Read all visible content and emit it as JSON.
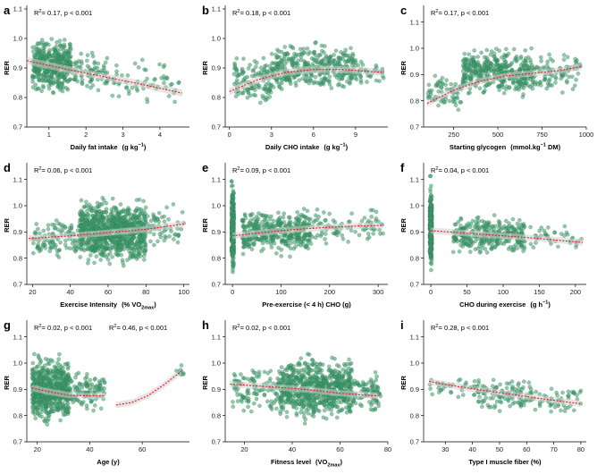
{
  "figure": {
    "background": "#ffffff",
    "point_color": "#3a9a6a",
    "point_edge": "#2e6e4e",
    "fit_color": "#e8191a",
    "band_color": "#cfcfcf"
  },
  "chart_data": [
    {
      "panel": "a",
      "type": "scatter",
      "xlabel": "Daily fat intake",
      "xunit": "(g kg",
      "xunit_sup": "−1",
      "xunit_end": ")",
      "ylabel": "RER",
      "annotation": "R",
      "annotation_sup": "2",
      "annotation_rest": "= 0.17, p < 0.001",
      "xlim": [
        0.4,
        4.8
      ],
      "ylim": [
        0.7,
        1.1
      ],
      "xticks": [
        "1",
        "2",
        "3",
        "4"
      ],
      "xtick_values": [
        1,
        2,
        3,
        4
      ],
      "yticks": [
        "0.7",
        "0.8",
        "0.9",
        "1.0",
        "1.1"
      ],
      "ytick_values": [
        0.7,
        0.8,
        0.9,
        1.0,
        1.1
      ],
      "fit": {
        "x": [
          0.4,
          1.5,
          2.5,
          3.5,
          4.6
        ],
        "y": [
          0.925,
          0.895,
          0.87,
          0.845,
          0.815
        ]
      },
      "clusters": [
        {
          "xmin": 0.55,
          "xmax": 1.6,
          "ymin": 0.8,
          "ymax": 1.02,
          "n": 420
        },
        {
          "xmin": 1.6,
          "xmax": 2.6,
          "ymin": 0.8,
          "ymax": 0.97,
          "n": 80
        },
        {
          "xmin": 2.6,
          "xmax": 4.6,
          "ymin": 0.76,
          "ymax": 0.94,
          "n": 60
        }
      ]
    },
    {
      "panel": "b",
      "type": "scatter",
      "xlabel": "Daily CHO intake",
      "xunit": "(g kg",
      "xunit_sup": "−1",
      "xunit_end": ")",
      "ylabel": "RER",
      "annotation": "R",
      "annotation_sup": "2",
      "annotation_rest": "= 0.18, p < 0.001",
      "xlim": [
        -0.3,
        11.3
      ],
      "ylim": [
        0.7,
        1.1
      ],
      "xticks": [
        "0",
        "3",
        "6",
        "9"
      ],
      "xtick_values": [
        0,
        3,
        6,
        9
      ],
      "yticks": [
        "0.7",
        "0.8",
        "0.9",
        "1.0",
        "1.1"
      ],
      "ytick_values": [
        0.7,
        0.8,
        0.9,
        1.0,
        1.1
      ],
      "fit": {
        "x": [
          0,
          2,
          4,
          6,
          8,
          11
        ],
        "y": [
          0.82,
          0.86,
          0.885,
          0.895,
          0.895,
          0.885
        ]
      },
      "clusters": [
        {
          "xmin": 0.3,
          "xmax": 3,
          "ymin": 0.74,
          "ymax": 0.96,
          "n": 120
        },
        {
          "xmin": 3,
          "xmax": 9,
          "ymin": 0.8,
          "ymax": 1.0,
          "n": 380
        },
        {
          "xmin": 9,
          "xmax": 11,
          "ymin": 0.82,
          "ymax": 0.96,
          "n": 40
        }
      ]
    },
    {
      "panel": "c",
      "type": "scatter",
      "xlabel": "Starting glycogen",
      "xunit": "(mmol.kg",
      "xunit_sup": "−1",
      "xunit_end": " DM)",
      "ylabel": "RER",
      "annotation": "R",
      "annotation_sup": "2",
      "annotation_rest": "= 0.17, p < 0.001",
      "xlim": [
        80,
        1000
      ],
      "ylim": [
        0.7,
        1.15
      ],
      "xticks": [
        "250",
        "500",
        "750",
        "1000"
      ],
      "xtick_values": [
        250,
        500,
        750,
        1000
      ],
      "yticks": [
        "0.7",
        "0.8",
        "0.9",
        "1.0",
        "1.1"
      ],
      "ytick_values": [
        0.7,
        0.8,
        0.9,
        1.0,
        1.1
      ],
      "fit": {
        "x": [
          100,
          250,
          400,
          550,
          700,
          850,
          970
        ],
        "y": [
          0.79,
          0.84,
          0.875,
          0.895,
          0.905,
          0.915,
          0.93
        ]
      },
      "clusters": [
        {
          "xmin": 100,
          "xmax": 300,
          "ymin": 0.74,
          "ymax": 0.92,
          "n": 70
        },
        {
          "xmin": 300,
          "xmax": 700,
          "ymin": 0.8,
          "ymax": 1.02,
          "n": 420
        },
        {
          "xmin": 700,
          "xmax": 970,
          "ymin": 0.82,
          "ymax": 1.0,
          "n": 90
        }
      ]
    },
    {
      "panel": "d",
      "type": "scatter",
      "xlabel": "Exercise Intensity",
      "xunit": "(% VO",
      "xunit_sub": "2max",
      "xunit_end": ")",
      "ylabel": "RER",
      "annotation": "R",
      "annotation_sup": "2",
      "annotation_rest": "= 0.06, p < 0.001",
      "xlim": [
        17,
        103
      ],
      "ylim": [
        0.7,
        1.15
      ],
      "xticks": [
        "20",
        "40",
        "60",
        "80",
        "100"
      ],
      "xtick_values": [
        20,
        40,
        60,
        80,
        100
      ],
      "yticks": [
        "0.7",
        "0.8",
        "0.9",
        "1.0",
        "1.1"
      ],
      "ytick_values": [
        0.7,
        0.8,
        0.9,
        1.0,
        1.1
      ],
      "fit": {
        "x": [
          18,
          40,
          60,
          80,
          100
        ],
        "y": [
          0.875,
          0.885,
          0.897,
          0.91,
          0.93
        ]
      },
      "clusters": [
        {
          "xmin": 20,
          "xmax": 45,
          "ymin": 0.78,
          "ymax": 0.98,
          "n": 110
        },
        {
          "xmin": 45,
          "xmax": 80,
          "ymin": 0.75,
          "ymax": 1.05,
          "n": 900
        },
        {
          "xmin": 80,
          "xmax": 100,
          "ymin": 0.8,
          "ymax": 1.02,
          "n": 60
        }
      ]
    },
    {
      "panel": "e",
      "type": "scatter",
      "xlabel": "Pre-exercise (< 4 h) CHO (g)",
      "xunit": "",
      "xunit_end": "",
      "ylabel": "RER",
      "annotation": "R",
      "annotation_sup": "2",
      "annotation_rest": "= 0.09, p < 0.001",
      "xlim": [
        -15,
        320
      ],
      "ylim": [
        0.7,
        1.15
      ],
      "xticks": [
        "0",
        "100",
        "200",
        "300"
      ],
      "xtick_values": [
        0,
        100,
        200,
        300
      ],
      "yticks": [
        "0.7",
        "0.8",
        "0.9",
        "1.0",
        "1.1"
      ],
      "ytick_values": [
        0.7,
        0.8,
        0.9,
        1.0,
        1.1
      ],
      "fit": {
        "x": [
          0,
          50,
          100,
          150,
          200,
          250,
          310
        ],
        "y": [
          0.885,
          0.895,
          0.905,
          0.912,
          0.918,
          0.922,
          0.925
        ]
      },
      "clusters": [
        {
          "xmin": -2,
          "xmax": 3,
          "ymin": 0.72,
          "ymax": 1.12,
          "n": 300
        },
        {
          "xmin": 20,
          "xmax": 160,
          "ymin": 0.8,
          "ymax": 1.0,
          "n": 400
        },
        {
          "xmin": 160,
          "xmax": 310,
          "ymin": 0.83,
          "ymax": 1.0,
          "n": 90
        }
      ]
    },
    {
      "panel": "f",
      "type": "scatter",
      "xlabel": "CHO during exercise",
      "xunit": "(g h",
      "xunit_sup": "−1",
      "xunit_end": ")",
      "ylabel": "RER",
      "annotation": "R",
      "annotation_sup": "2",
      "annotation_rest": "= 0.04, p < 0.001",
      "xlim": [
        -10,
        215
      ],
      "ylim": [
        0.7,
        1.15
      ],
      "xticks": [
        "0",
        "50",
        "100",
        "150",
        "200"
      ],
      "xtick_values": [
        0,
        50,
        100,
        150,
        200
      ],
      "yticks": [
        "0.7",
        "0.8",
        "0.9",
        "1.0",
        "1.1"
      ],
      "ytick_values": [
        0.7,
        0.8,
        0.9,
        1.0,
        1.1
      ],
      "fit": {
        "x": [
          0,
          50,
          100,
          150,
          210
        ],
        "y": [
          0.905,
          0.895,
          0.885,
          0.875,
          0.86
        ]
      },
      "clusters": [
        {
          "xmin": -1.5,
          "xmax": 1.5,
          "ymin": 0.72,
          "ymax": 1.12,
          "n": 320
        },
        {
          "xmin": 30,
          "xmax": 130,
          "ymin": 0.8,
          "ymax": 0.98,
          "n": 320
        },
        {
          "xmin": 130,
          "xmax": 210,
          "ymin": 0.82,
          "ymax": 0.94,
          "n": 40
        }
      ]
    },
    {
      "panel": "g",
      "type": "scatter",
      "xlabel": "Age (y)",
      "xunit": "",
      "xunit_end": "",
      "ylabel": "RER",
      "annotation": "R",
      "annotation_sup": "2",
      "annotation_rest": "= 0.02, p < 0.001",
      "annotation2": "R",
      "annotation2_sup": "2",
      "annotation2_rest": "= 0.46, p < 0.001",
      "xlim": [
        16,
        78
      ],
      "ylim": [
        0.7,
        1.15
      ],
      "xticks": [
        "20",
        "40",
        "60"
      ],
      "xtick_values": [
        20,
        40,
        60
      ],
      "yticks": [
        "0.7",
        "0.8",
        "0.9",
        "1.0",
        "1.1"
      ],
      "ytick_values": [
        0.7,
        0.8,
        0.9,
        1.0,
        1.1
      ],
      "fit": {
        "x": [
          18,
          25,
          32,
          40,
          46
        ],
        "y": [
          0.905,
          0.89,
          0.878,
          0.875,
          0.875
        ]
      },
      "fit2": {
        "x": [
          50,
          56,
          62,
          68,
          75
        ],
        "y": [
          0.84,
          0.85,
          0.875,
          0.915,
          0.97
        ]
      },
      "clusters": [
        {
          "xmin": 18,
          "xmax": 32,
          "ymin": 0.75,
          "ymax": 1.05,
          "n": 600
        },
        {
          "xmin": 32,
          "xmax": 46,
          "ymin": 0.8,
          "ymax": 0.98,
          "n": 120
        },
        {
          "xmin": 73,
          "xmax": 76,
          "ymin": 0.94,
          "ymax": 1.0,
          "n": 10
        }
      ]
    },
    {
      "panel": "h",
      "type": "scatter",
      "xlabel": "Fitness level",
      "xunit": "(VO",
      "xunit_sub": "2max",
      "xunit_end": ")",
      "ylabel": "RER",
      "annotation": "R",
      "annotation_sup": "2",
      "annotation_rest": "= 0.02, p < 0.001",
      "xlim": [
        12,
        80
      ],
      "ylim": [
        0.7,
        1.15
      ],
      "xticks": [
        "20",
        "40",
        "60",
        "80"
      ],
      "xtick_values": [
        20,
        40,
        60,
        80
      ],
      "yticks": [
        "0.7",
        "0.8",
        "0.9",
        "1.0",
        "1.1"
      ],
      "ytick_values": [
        0.7,
        0.8,
        0.9,
        1.0,
        1.1
      ],
      "fit": {
        "x": [
          14,
          30,
          45,
          60,
          76
        ],
        "y": [
          0.92,
          0.91,
          0.9,
          0.885,
          0.875
        ]
      },
      "clusters": [
        {
          "xmin": 15,
          "xmax": 35,
          "ymin": 0.78,
          "ymax": 1.02,
          "n": 120
        },
        {
          "xmin": 35,
          "xmax": 65,
          "ymin": 0.76,
          "ymax": 1.05,
          "n": 750
        },
        {
          "xmin": 65,
          "xmax": 77,
          "ymin": 0.8,
          "ymax": 0.98,
          "n": 90
        }
      ]
    },
    {
      "panel": "i",
      "type": "scatter",
      "xlabel": "Type I muscle fiber (%)",
      "xunit": "",
      "xunit_end": "",
      "ylabel": "RER",
      "annotation": "R",
      "annotation_sup": "2",
      "annotation_rest": "= 0.28, p < 0.001",
      "xlim": [
        22,
        82
      ],
      "ylim": [
        0.7,
        1.15
      ],
      "xticks": [
        "30",
        "40",
        "50",
        "60",
        "70",
        "80"
      ],
      "xtick_values": [
        30,
        40,
        50,
        60,
        70,
        80
      ],
      "yticks": [
        "0.7",
        "0.8",
        "0.9",
        "1.0",
        "1.1"
      ],
      "ytick_values": [
        0.7,
        0.8,
        0.9,
        1.0,
        1.1
      ],
      "fit": {
        "x": [
          24,
          35,
          45,
          55,
          65,
          80
        ],
        "y": [
          0.93,
          0.91,
          0.895,
          0.88,
          0.865,
          0.845
        ]
      },
      "clusters": [
        {
          "xmin": 24,
          "xmax": 42,
          "ymin": 0.86,
          "ymax": 0.96,
          "n": 40
        },
        {
          "xmin": 42,
          "xmax": 62,
          "ymin": 0.8,
          "ymax": 0.96,
          "n": 110
        },
        {
          "xmin": 62,
          "xmax": 80,
          "ymin": 0.8,
          "ymax": 0.92,
          "n": 50
        }
      ]
    }
  ]
}
